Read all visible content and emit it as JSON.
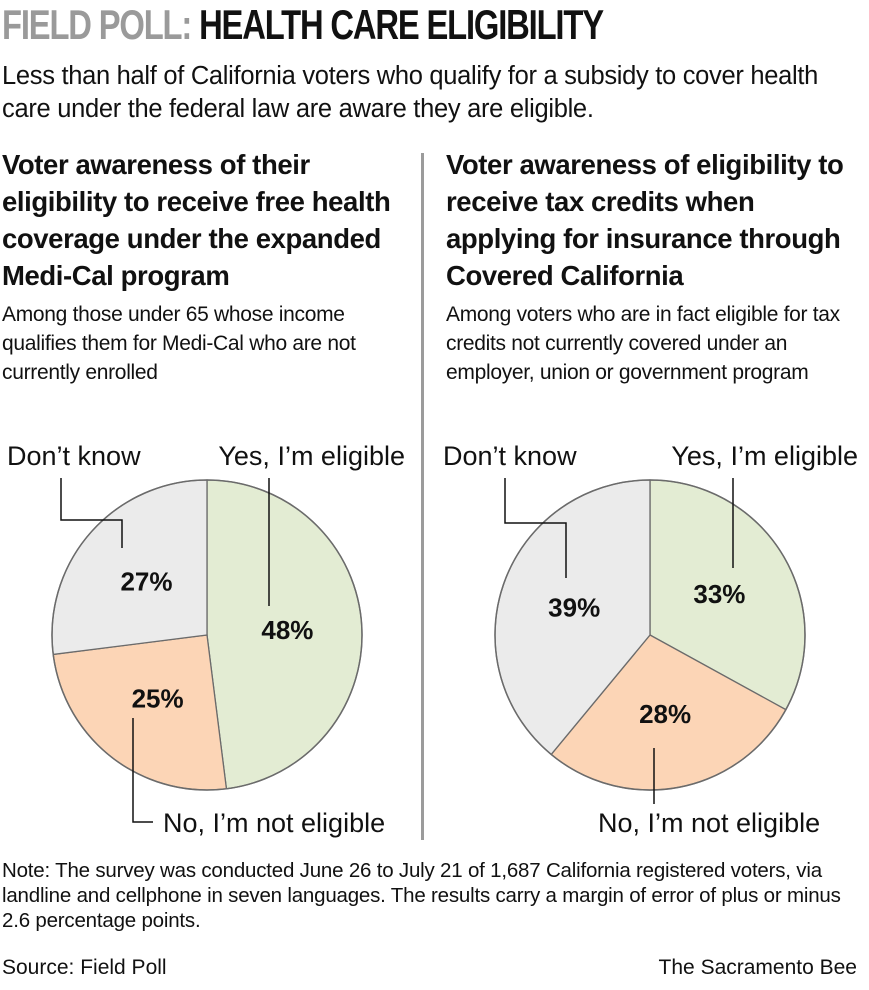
{
  "header": {
    "kicker": "FIELD POLL:",
    "headline": "HEALTH CARE ELIGIBILITY",
    "subtitle": "Less than half of California voters who qualify for a subsidy to cover health care under the federal law are aware they are eligible."
  },
  "panels": [
    {
      "title": "Voter awareness of their eligibility to receive free health coverage under the expanded Medi-Cal program",
      "note": "Among those under 65 whose income qualifies them for Medi-Cal who are not currently enrolled"
    },
    {
      "title": "Voter awareness of eligibility to receive tax credits when applying for insurance through Covered California",
      "note": "Among voters who are in fact eligible for tax credits not currently covered under an employer, union or government program"
    }
  ],
  "chart_data": [
    {
      "type": "pie",
      "categories": [
        "Yes, I’m eligible",
        "No, I’m not eligible",
        "Don’t know"
      ],
      "values": [
        48,
        25,
        27
      ],
      "value_labels": [
        "48%",
        "25%",
        "27%"
      ],
      "colors": [
        "#e3ecd3",
        "#fcd5b6",
        "#ebebeb"
      ]
    },
    {
      "type": "pie",
      "categories": [
        "Yes, I’m eligible",
        "No, I’m not eligible",
        "Don’t know"
      ],
      "values": [
        33,
        28,
        39
      ],
      "value_labels": [
        "33%",
        "28%",
        "39%"
      ],
      "colors": [
        "#e3ecd3",
        "#fcd5b6",
        "#ebebeb"
      ]
    }
  ],
  "footer": {
    "note": "Note: The survey was conducted June 26 to July 21 of 1,687 California registered voters, via landline and cellphone in seven languages. The results carry a margin of error of plus or minus 2.6 percentage points.",
    "source": "Source: Field Poll",
    "credit": "The Sacramento Bee"
  }
}
